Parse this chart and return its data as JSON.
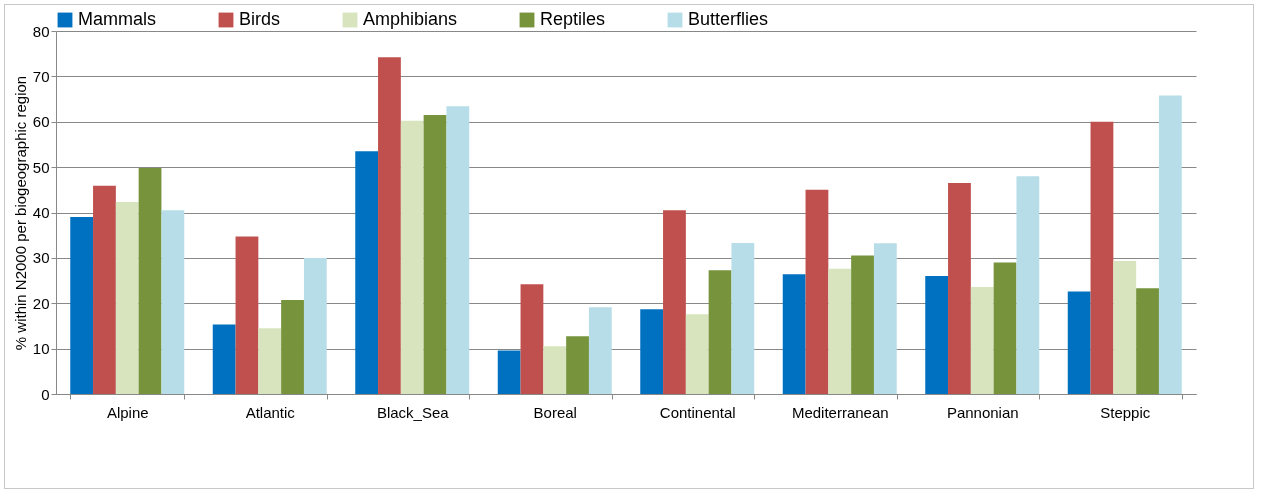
{
  "chart_data": {
    "type": "bar",
    "ylabel": "% within N2000 per biogeographic region",
    "categories": [
      "Alpine",
      "Atlantic",
      "Black_Sea",
      "Boreal",
      "Continental",
      "Mediterranean",
      "Pannonian",
      "Steppic"
    ],
    "series": [
      {
        "name": "Mammals",
        "color": "#0070c0",
        "values": [
          39.0,
          15.3,
          53.5,
          9.6,
          18.7,
          26.4,
          26.0,
          22.6
        ]
      },
      {
        "name": "Birds",
        "color": "#c0504d",
        "values": [
          45.9,
          34.7,
          74.2,
          24.2,
          40.5,
          45.0,
          46.5,
          60.0
        ]
      },
      {
        "name": "Amphibians",
        "color": "#d7e4bd",
        "values": [
          42.3,
          14.5,
          60.2,
          10.5,
          17.6,
          27.6,
          23.6,
          29.3
        ]
      },
      {
        "name": "Reptiles",
        "color": "#77933c",
        "values": [
          49.8,
          20.7,
          61.5,
          12.7,
          27.3,
          30.5,
          29.0,
          23.3
        ]
      },
      {
        "name": "Butterflies",
        "color": "#b7dee8",
        "values": [
          40.5,
          30.0,
          63.4,
          19.1,
          33.3,
          33.2,
          48.0,
          65.8
        ]
      }
    ],
    "ylim": [
      0,
      80
    ],
    "yticks": [
      0,
      10,
      20,
      30,
      40,
      50,
      60,
      70,
      80
    ],
    "grid": "y",
    "legend": "top"
  }
}
